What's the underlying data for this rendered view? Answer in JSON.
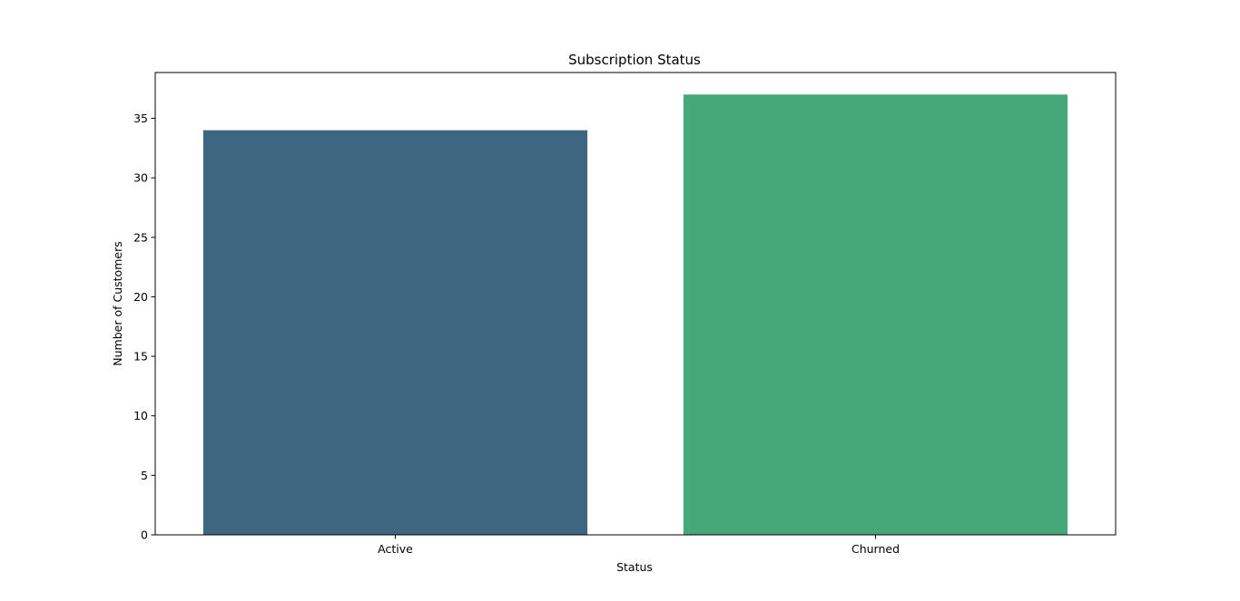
{
  "chart_data": {
    "type": "bar",
    "title": "Subscription Status",
    "xlabel": "Status",
    "ylabel": "Number of Customers",
    "categories": [
      "Active",
      "Churned"
    ],
    "values": [
      34,
      37
    ],
    "ylim": [
      0,
      38.85
    ],
    "yticks": [
      0,
      5,
      10,
      15,
      20,
      25,
      30,
      35
    ],
    "grid": false,
    "legend": "none",
    "colors": [
      "#3e6680",
      "#46a878"
    ]
  }
}
